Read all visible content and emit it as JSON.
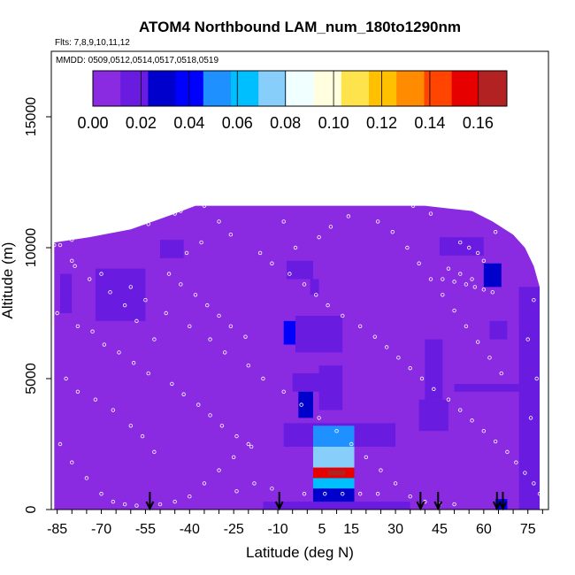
{
  "chart_data": {
    "type": "heatmap",
    "title": "ATOM4 Northbound LAM_num_180to1290nm",
    "subtitle_flights": "Flts: 7,8,9,10,11,12",
    "subtitle_dates": "MMDD: 0509,0512,0514,0517,0518,0519",
    "xlabel": "Latitude (deg N)",
    "ylabel": "Altitude (m)",
    "xlim": [
      -87,
      82
    ],
    "ylim": [
      0,
      17500
    ],
    "x_ticks": [
      "-85",
      "-70",
      "-55",
      "-40",
      "-25",
      "-10",
      "5",
      "15",
      "30",
      "45",
      "60",
      "75"
    ],
    "x_tick_values": [
      -85,
      -70,
      -55,
      -40,
      -25,
      -10,
      5,
      15,
      30,
      45,
      60,
      75
    ],
    "y_ticks": [
      "0",
      "5000",
      "10000",
      "15000"
    ],
    "y_tick_values": [
      0,
      5000,
      10000,
      15000
    ],
    "colorbar": {
      "range": [
        0,
        0.172
      ],
      "tick_labels": [
        "0.00",
        "0.02",
        "0.04",
        "0.06",
        "0.08",
        "0.10",
        "0.12",
        "0.14",
        "0.16"
      ],
      "tick_values": [
        0,
        0.02,
        0.04,
        0.06,
        0.08,
        0.1,
        0.12,
        0.14,
        0.16
      ],
      "colors": [
        "#8A2BE2",
        "#6A1BE0",
        "#0000CD",
        "#0000FF",
        "#1E90FF",
        "#00BFFF",
        "#87CEFA",
        "#F0FFFF",
        "#FFFFE0",
        "#FFE34D",
        "#FFC000",
        "#FF8C00",
        "#FF4500",
        "#E60000",
        "#B22222"
      ]
    },
    "background_value": 0.0,
    "coverage_envelope": [
      {
        "lat": -86,
        "top": 10200
      },
      {
        "lat": -74,
        "top": 10400
      },
      {
        "lat": -60,
        "top": 10700
      },
      {
        "lat": -45,
        "top": 11300
      },
      {
        "lat": -38,
        "top": 11600
      },
      {
        "lat": -20,
        "top": 11600
      },
      {
        "lat": 0,
        "top": 11600
      },
      {
        "lat": 25,
        "top": 11600
      },
      {
        "lat": 40,
        "top": 11600
      },
      {
        "lat": 56,
        "top": 11400
      },
      {
        "lat": 63,
        "top": 11000
      },
      {
        "lat": 70,
        "top": 10500
      },
      {
        "lat": 74,
        "top": 10000
      },
      {
        "lat": 77,
        "top": 9300
      },
      {
        "lat": 79,
        "top": 8500
      }
    ],
    "features": [
      {
        "lat": [
          -80,
          -70
        ],
        "alt": [
          9200,
          10000
        ],
        "value": 0.01
      },
      {
        "lat": [
          -72,
          -55
        ],
        "alt": [
          7200,
          9200
        ],
        "value": 0.012
      },
      {
        "lat": [
          -84,
          -80
        ],
        "alt": [
          7500,
          9000
        ],
        "value": 0.015
      },
      {
        "lat": [
          -50,
          -42
        ],
        "alt": [
          9600,
          10300
        ],
        "value": 0.012
      },
      {
        "lat": [
          -22,
          -12
        ],
        "alt": [
          9400,
          10200
        ],
        "value": 0.01
      },
      {
        "lat": [
          -7,
          2
        ],
        "alt": [
          8800,
          9500
        ],
        "value": 0.012
      },
      {
        "lat": [
          1,
          4
        ],
        "alt": [
          8200,
          8800
        ],
        "value": 0.015
      },
      {
        "lat": [
          17,
          22
        ],
        "alt": [
          9900,
          10400
        ],
        "value": 0.01
      },
      {
        "lat": [
          -8,
          -4
        ],
        "alt": [
          6300,
          7200
        ],
        "value": 0.035
      },
      {
        "lat": [
          -4,
          12
        ],
        "alt": [
          6000,
          7400
        ],
        "value": 0.018
      },
      {
        "lat": [
          -5,
          5
        ],
        "alt": [
          4500,
          5200
        ],
        "value": 0.022
      },
      {
        "lat": [
          -3,
          2
        ],
        "alt": [
          3500,
          4500
        ],
        "value": 0.03
      },
      {
        "lat": [
          4,
          12
        ],
        "alt": [
          3800,
          5500
        ],
        "value": 0.02
      },
      {
        "lat": [
          -8,
          30
        ],
        "alt": [
          2400,
          3300
        ],
        "value": 0.016
      },
      {
        "lat": [
          2,
          16
        ],
        "alt": [
          2400,
          3200
        ],
        "value": 0.05
      },
      {
        "lat": [
          2,
          16
        ],
        "alt": [
          1600,
          2400
        ],
        "value": 0.07
      },
      {
        "lat": [
          2,
          16
        ],
        "alt": [
          1200,
          1600
        ],
        "value": 0.16
      },
      {
        "lat": [
          7,
          13
        ],
        "alt": [
          1300,
          1500
        ],
        "value": 0.168
      },
      {
        "lat": [
          2,
          16
        ],
        "alt": [
          800,
          1200
        ],
        "value": 0.06
      },
      {
        "lat": [
          2,
          16
        ],
        "alt": [
          200,
          800
        ],
        "value": 0.03
      },
      {
        "lat": [
          -15,
          35
        ],
        "alt": [
          0,
          300
        ],
        "value": 0.014
      },
      {
        "lat": [
          38,
          48
        ],
        "alt": [
          3000,
          4200
        ],
        "value": 0.016
      },
      {
        "lat": [
          40,
          46
        ],
        "alt": [
          4200,
          6500
        ],
        "value": 0.022
      },
      {
        "lat": [
          50,
          72
        ],
        "alt": [
          4500,
          4800
        ],
        "value": 0.012
      },
      {
        "lat": [
          62,
          68
        ],
        "alt": [
          6500,
          7200
        ],
        "value": 0.015
      },
      {
        "lat": [
          45,
          60
        ],
        "alt": [
          9700,
          10400
        ],
        "value": 0.012
      },
      {
        "lat": [
          60,
          66
        ],
        "alt": [
          8500,
          9400
        ],
        "value": 0.03
      },
      {
        "lat": [
          72,
          79
        ],
        "alt": [
          0,
          8500
        ],
        "value": 0.018
      },
      {
        "lat": [
          72,
          78
        ],
        "alt": [
          7000,
          8500
        ],
        "value": 0.022
      },
      {
        "lat": [
          64,
          68
        ],
        "alt": [
          0,
          400
        ],
        "value": 0.035
      }
    ],
    "arrows_lat": [
      -53.5,
      -9.5,
      38.5,
      44.5,
      64.5,
      66.5
    ],
    "sample_points": [
      [
        -86,
        10100
      ],
      [
        -84,
        10100
      ],
      [
        -80,
        10300
      ],
      [
        -76,
        10500
      ],
      [
        -73,
        10600
      ],
      [
        -68,
        10700
      ],
      [
        -63,
        10800
      ],
      [
        -54,
        10900
      ],
      [
        -45,
        11300
      ],
      [
        -43,
        11400
      ],
      [
        -35,
        11600
      ],
      [
        -31,
        11700
      ],
      [
        -22,
        12000
      ],
      [
        -18,
        12100
      ],
      [
        -10,
        12300
      ],
      [
        0,
        12500
      ],
      [
        2,
        12700
      ],
      [
        18,
        12400
      ],
      [
        22,
        12300
      ],
      [
        26,
        12200
      ],
      [
        30,
        12000
      ],
      [
        36,
        11600
      ],
      [
        42,
        11300
      ],
      [
        52,
        10200
      ],
      [
        55,
        10000
      ],
      [
        58,
        9800
      ],
      [
        60,
        9500
      ],
      [
        64,
        10600
      ],
      [
        68,
        10800
      ],
      [
        72,
        11000
      ],
      [
        74,
        11200
      ],
      [
        -80,
        9500
      ],
      [
        -70,
        9000
      ],
      [
        -60,
        8500
      ],
      [
        -55,
        8000
      ],
      [
        -48,
        7500
      ],
      [
        -40,
        7000
      ],
      [
        -33,
        6500
      ],
      [
        -28,
        6000
      ],
      [
        -20,
        5500
      ],
      [
        -15,
        5000
      ],
      [
        -8,
        4500
      ],
      [
        -2,
        4000
      ],
      [
        4,
        3500
      ],
      [
        10,
        3000
      ],
      [
        15,
        2500
      ],
      [
        20,
        2000
      ],
      [
        25,
        1500
      ],
      [
        30,
        1000
      ],
      [
        35,
        500
      ],
      [
        40,
        300
      ],
      [
        45,
        200
      ],
      [
        50,
        200
      ],
      [
        -84,
        2500
      ],
      [
        -80,
        1800
      ],
      [
        -75,
        1200
      ],
      [
        -70,
        600
      ],
      [
        -66,
        300
      ],
      [
        -62,
        200
      ],
      [
        -58,
        150
      ],
      [
        -50,
        200
      ],
      [
        -45,
        300
      ],
      [
        -40,
        500
      ],
      [
        -35,
        1000
      ],
      [
        -30,
        1500
      ],
      [
        -25,
        2000
      ],
      [
        -20,
        2500
      ],
      [
        -82,
        5000
      ],
      [
        -78,
        4500
      ],
      [
        -72,
        4200
      ],
      [
        -66,
        3800
      ],
      [
        -60,
        3200
      ],
      [
        -56,
        2800
      ],
      [
        -52,
        2200
      ],
      [
        -85,
        7500
      ],
      [
        -78,
        7000
      ],
      [
        -73,
        6800
      ],
      [
        -69,
        6300
      ],
      [
        -64,
        6000
      ],
      [
        -59,
        5600
      ],
      [
        -54,
        5200
      ],
      [
        -46,
        4800
      ],
      [
        -42,
        4400
      ],
      [
        -37,
        4000
      ],
      [
        -33,
        3600
      ],
      [
        -29,
        3200
      ],
      [
        -24,
        2800
      ],
      [
        -19,
        2400
      ],
      [
        -47,
        9000
      ],
      [
        -43,
        8600
      ],
      [
        -38,
        8200
      ],
      [
        -34,
        7800
      ],
      [
        -30,
        7400
      ],
      [
        -26,
        7000
      ],
      [
        -21,
        6600
      ],
      [
        -16,
        9800
      ],
      [
        -12,
        9400
      ],
      [
        -6,
        9000
      ],
      [
        -1,
        8600
      ],
      [
        3,
        8200
      ],
      [
        7,
        7800
      ],
      [
        12,
        7400
      ],
      [
        18,
        7000
      ],
      [
        23,
        6600
      ],
      [
        27,
        6200
      ],
      [
        31,
        5800
      ],
      [
        35,
        5400
      ],
      [
        39,
        5000
      ],
      [
        43,
        4600
      ],
      [
        48,
        4200
      ],
      [
        52,
        3800
      ],
      [
        56,
        3400
      ],
      [
        60,
        3000
      ],
      [
        64,
        2600
      ],
      [
        68,
        2200
      ],
      [
        71,
        1800
      ],
      [
        74,
        1400
      ],
      [
        77,
        1000
      ],
      [
        79,
        600
      ],
      [
        76,
        3500
      ],
      [
        78,
        5000
      ],
      [
        75,
        6500
      ],
      [
        77,
        8000
      ],
      [
        66,
        5200
      ],
      [
        62,
        5800
      ],
      [
        58,
        6400
      ],
      [
        54,
        7000
      ],
      [
        50,
        7600
      ],
      [
        46,
        8200
      ],
      [
        42,
        8800
      ],
      [
        38,
        9400
      ],
      [
        34,
        10000
      ],
      [
        29,
        10600
      ],
      [
        24,
        11000
      ],
      [
        14,
        11200
      ],
      [
        8,
        10800
      ],
      [
        4,
        10400
      ],
      [
        -4,
        10000
      ],
      [
        -8,
        11000
      ],
      [
        -26,
        10500
      ],
      [
        -30,
        11000
      ],
      [
        -36,
        10200
      ],
      [
        -41,
        9800
      ],
      [
        -52,
        6500
      ],
      [
        -58,
        7200
      ],
      [
        -62,
        7800
      ],
      [
        -67,
        8300
      ],
      [
        -74,
        8800
      ],
      [
        -79,
        9300
      ],
      [
        46,
        8800
      ],
      [
        50,
        8700
      ],
      [
        54,
        8600
      ],
      [
        57,
        8500
      ],
      [
        60,
        8400
      ],
      [
        63,
        8300
      ],
      [
        48,
        9200
      ],
      [
        52,
        9000
      ],
      [
        56,
        8800
      ],
      [
        -1,
        600
      ],
      [
        6,
        600
      ],
      [
        12,
        600
      ],
      [
        18,
        600
      ],
      [
        24,
        600
      ],
      [
        -12,
        800
      ],
      [
        -18,
        1000
      ],
      [
        -24,
        700
      ]
    ]
  }
}
